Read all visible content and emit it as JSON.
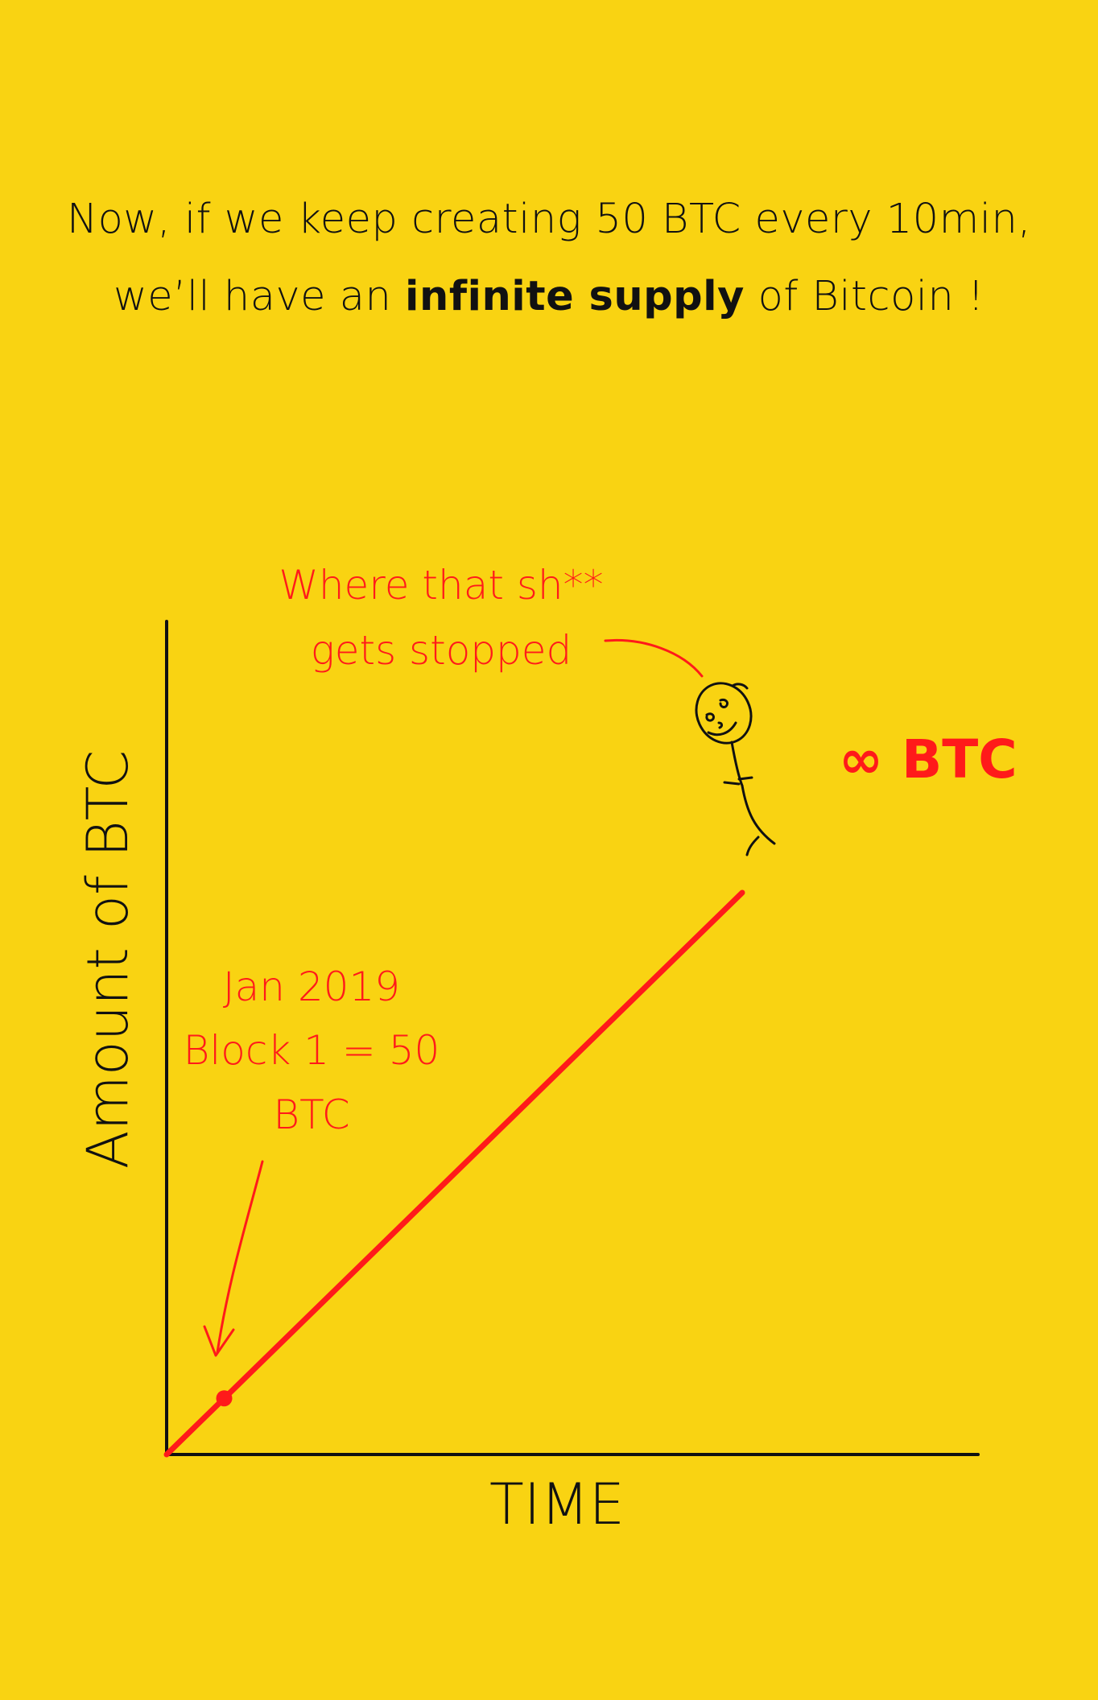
{
  "intro": {
    "line1": "Now, if we keep creating 50 BTC every 10min,",
    "line2_pre": "we’ll have an ",
    "line2_bold": "infinite supply",
    "line2_post": " of Bitcoin !"
  },
  "chart_data": {
    "type": "line",
    "xlabel": "TIME",
    "ylabel": "Amount of BTC",
    "colors": {
      "background": "#F9D312",
      "line": "#FF1A1A",
      "axes": "#111111",
      "annotation": "#FF1A1A"
    },
    "grid": false,
    "series": [
      {
        "x": [
          0,
          1,
          10
        ],
        "y": [
          0,
          1,
          10
        ]
      }
    ],
    "point": {
      "x": 1,
      "y": 1
    },
    "end_label": "∞ BTC",
    "annotations": {
      "start": [
        "Jan 2019",
        "Block 1 = 50",
        "BTC"
      ],
      "stop": [
        "Where that sh**",
        "gets stopped"
      ]
    }
  }
}
